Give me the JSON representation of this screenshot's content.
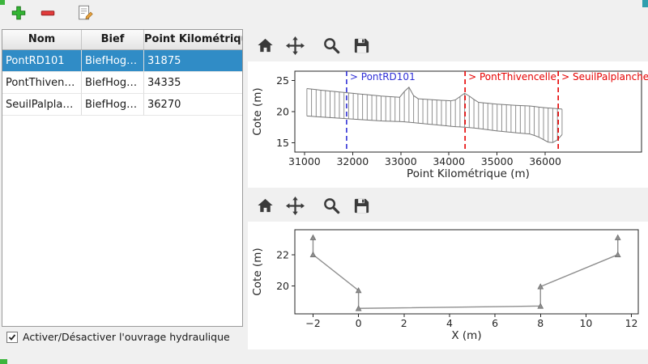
{
  "main_toolbar": {
    "buttons": [
      {
        "name": "add",
        "icon": "plus-icon"
      },
      {
        "name": "remove",
        "icon": "minus-icon"
      },
      {
        "name": "edit",
        "icon": "edit-document-icon"
      }
    ]
  },
  "table": {
    "columns": [
      "Nom",
      "Bief",
      "Point Kilométrique"
    ],
    "rows": [
      {
        "nom": "PontRD101",
        "bief": "BiefHogneau",
        "pk": "31875",
        "selected": true
      },
      {
        "nom": "PontThivencelle",
        "bief": "BiefHogneau",
        "pk": "34335",
        "selected": false
      },
      {
        "nom": "SeuilPalplanches",
        "bief": "BiefHogneau",
        "pk": "36270",
        "selected": false
      }
    ]
  },
  "checkbox": {
    "label": "Activer/Désactiver l'ouvrage hydraulique",
    "checked": true
  },
  "chart_toolbar": {
    "buttons": [
      {
        "name": "home",
        "icon": "home-icon"
      },
      {
        "name": "pan",
        "icon": "move-icon"
      },
      {
        "name": "zoom",
        "icon": "magnifier-icon"
      },
      {
        "name": "save",
        "icon": "save-icon"
      }
    ]
  },
  "colors": {
    "selection": "#308cc6",
    "annotation_blue": "#3030d6",
    "annotation_red": "#e60000",
    "profile_gray": "#8f8f8f",
    "envelope_gray": "#787878",
    "chart_ink": "#262626",
    "add_green": "#33b533",
    "remove_red": "#e23b3b",
    "toolbar_icon": "#3a3a3a"
  },
  "chart_data": [
    {
      "type": "area",
      "title": "",
      "xlabel": "Point Kilométrique (m)",
      "ylabel": "Cote (m)",
      "xlim": [
        30800,
        38000
      ],
      "ylim": [
        13.5,
        26.5
      ],
      "xticks": [
        31000,
        32000,
        33000,
        34000,
        35000,
        36000
      ],
      "yticks": [
        15,
        20,
        25
      ],
      "grid": false,
      "n_sections": 56,
      "envelope": {
        "x": [
          31050,
          31400,
          31800,
          32200,
          32600,
          33000,
          33150,
          33300,
          33700,
          34100,
          34335,
          34600,
          35000,
          35400,
          35700,
          35900,
          36050,
          36200,
          36350
        ],
        "top": [
          23.7,
          23.4,
          23.1,
          22.8,
          22.5,
          22.3,
          24.2,
          22.1,
          21.9,
          21.7,
          23.0,
          21.5,
          21.2,
          21.0,
          20.9,
          20.7,
          20.6,
          20.5,
          20.4
        ],
        "bottom": [
          19.3,
          19.1,
          18.9,
          18.7,
          18.5,
          18.4,
          18.3,
          18.2,
          17.9,
          17.6,
          17.5,
          17.3,
          16.9,
          16.6,
          16.4,
          15.8,
          15.1,
          15.0,
          16.3
        ]
      },
      "annotations": [
        {
          "x": 31875,
          "label": "> PontRD101",
          "color": "blue"
        },
        {
          "x": 34335,
          "label": "> PontThivencelle",
          "color": "red"
        },
        {
          "x": 36270,
          "label": "> SeuilPalplanches",
          "color": "red"
        }
      ]
    },
    {
      "type": "line",
      "title": "",
      "xlabel": "X (m)",
      "ylabel": "Cote (m)",
      "xlim": [
        -2.8,
        12.3
      ],
      "ylim": [
        18.2,
        23.6
      ],
      "xticks": [
        -2,
        0,
        2,
        4,
        6,
        8,
        10,
        12
      ],
      "yticks": [
        20,
        22
      ],
      "grid": false,
      "x": [
        -2,
        -2,
        0,
        0,
        8,
        8,
        11.4,
        11.4
      ],
      "y": [
        23.1,
        22.0,
        19.7,
        18.55,
        18.7,
        19.95,
        22.0,
        23.1
      ]
    }
  ]
}
